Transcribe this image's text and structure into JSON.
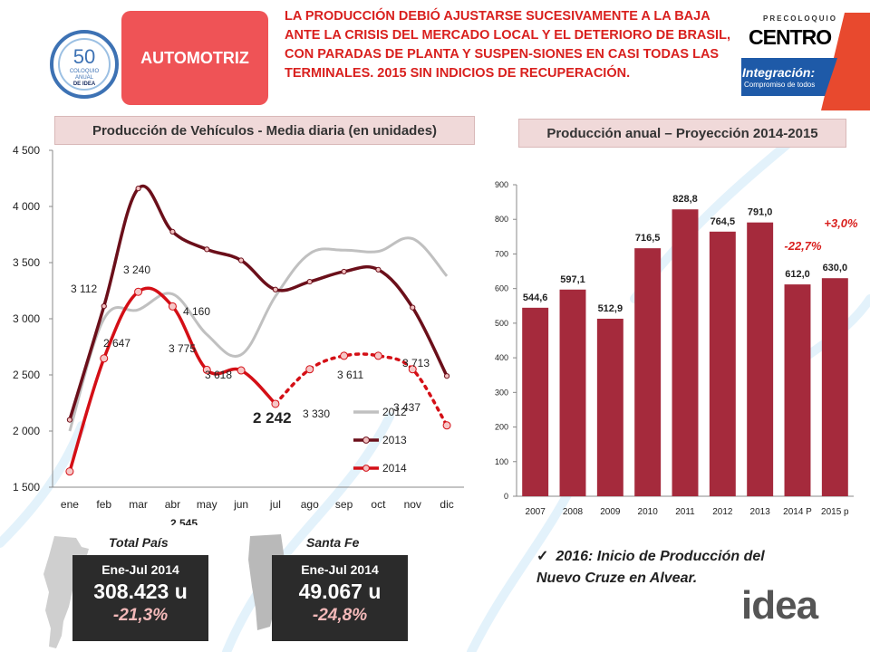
{
  "header": {
    "sector_label": "AUTOMOTRIZ",
    "headline": "LA PRODUCCIÓN DEBIÓ AJUSTARSE SUCESIVAMENTE A LA BAJA ANTE LA CRISIS DEL MERCADO LOCAL Y EL DETERIORO DE BRASIL, CON PARADAS DE PLANTA Y SUSPEN-SIONES EN CASI TODAS LAS TERMINALES. 2015 SIN INDICIOS DE RECUPERACIÓN.",
    "colors": {
      "sector_bg": "#ef5356",
      "headline": "#d9201e"
    }
  },
  "logos": {
    "coloquio_number": "50",
    "coloquio_text": [
      "COLOQUIO",
      "ANUAL",
      "DE IDEA"
    ],
    "sponsor_top": "PRECOLOQUIO",
    "sponsor_name": "CENTRO",
    "sponsor_tagline": "Integración:",
    "sponsor_subtagline": "Compromiso de todos",
    "idea": "idea"
  },
  "chart_data": [
    {
      "type": "line",
      "title": "Producción de Vehículos - Media diaria (en unidades)",
      "categories": [
        "ene",
        "feb",
        "mar",
        "abr",
        "may",
        "jun",
        "jul",
        "ago",
        "sep",
        "oct",
        "nov",
        "dic"
      ],
      "ylim": [
        1500,
        4500
      ],
      "yticks": [
        "1 500",
        "2 000",
        "2 500",
        "3 000",
        "3 500",
        "4 000",
        "4 500"
      ],
      "ytick_values": [
        1500,
        2000,
        2500,
        3000,
        3500,
        4000,
        4500
      ],
      "grid": false,
      "legend": "bottom-right",
      "series": [
        {
          "name": "2012",
          "color": "#c0c0c0",
          "values": [
            2000,
            3000,
            3080,
            3220,
            2860,
            2680,
            3200,
            3580,
            3611,
            3600,
            3713,
            3380
          ]
        },
        {
          "name": "2013",
          "color": "#6b0f1a",
          "values": [
            2100,
            3112,
            4160,
            3775,
            3618,
            3520,
            3260,
            3330,
            3420,
            3437,
            3100,
            2490
          ]
        },
        {
          "name": "2014",
          "color": "#d40f16",
          "values": [
            1640,
            2647,
            3240,
            3110,
            2545,
            2540,
            2242,
            2550,
            2670,
            2670,
            2550,
            2050
          ],
          "actual_through_index": 6
        }
      ],
      "labels": [
        {
          "text": "4 160"
        },
        {
          "text": "3 775"
        },
        {
          "text": "3 618"
        },
        {
          "text": "3 112"
        },
        {
          "text": "3 240"
        },
        {
          "text": "2 647"
        },
        {
          "text": "2 545"
        },
        {
          "text": "2 242"
        },
        {
          "text": "3 330"
        },
        {
          "text": "3 611"
        },
        {
          "text": "3 713"
        },
        {
          "text": "3 437"
        }
      ]
    },
    {
      "type": "bar",
      "title": "Producción anual – Proyección 2014-2015",
      "categories": [
        "2007",
        "2008",
        "2009",
        "2010",
        "2011",
        "2012",
        "2013",
        "2014 P",
        "2015 p"
      ],
      "values": [
        544.6,
        597.1,
        512.9,
        716.5,
        828.8,
        764.5,
        791.0,
        612.0,
        630.0
      ],
      "value_labels": [
        "544,6",
        "597,1",
        "512,9",
        "716,5",
        "828,8",
        "764,5",
        "791,0",
        "612,0",
        "630,0"
      ],
      "ylim": [
        0,
        900
      ],
      "yticks": [
        "0",
        "100",
        "200",
        "300",
        "400",
        "500",
        "600",
        "700",
        "800",
        "900"
      ],
      "ytick_values": [
        0,
        100,
        200,
        300,
        400,
        500,
        600,
        700,
        800,
        900
      ],
      "grid": false,
      "bar_color": "#a52a3c",
      "annotations": [
        "-22,7%",
        "+3,0%"
      ],
      "annotation_color": "#d9201e"
    }
  ],
  "stats": {
    "total": {
      "title": "Total País",
      "period": "Ene-Jul 2014",
      "value": "308.423 u",
      "change": "-21,3%"
    },
    "santa_fe": {
      "title": "Santa Fe",
      "period": "Ene-Jul 2014",
      "value": "49.067 u",
      "change": "-24,8%"
    }
  },
  "note": "2016: Inicio de Producción del Nuevo Cruze en Alvear."
}
